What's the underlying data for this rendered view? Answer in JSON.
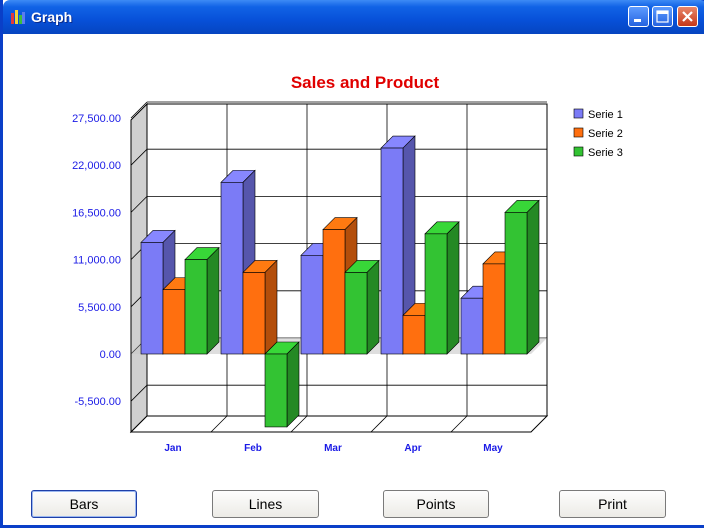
{
  "window": {
    "title": "Graph"
  },
  "buttons": {
    "bars": "Bars",
    "lines": "Lines",
    "points": "Points",
    "print": "Print"
  },
  "colors": {
    "serie1": "#7b7bf6",
    "serie2": "#ff6f0f",
    "serie3": "#33c333",
    "title": "#e00000",
    "axis_text": "#1a1ae6"
  },
  "chart_data": {
    "type": "bar",
    "title": "Sales and Product",
    "categories": [
      "Jan",
      "Feb",
      "Mar",
      "Apr",
      "May"
    ],
    "series": [
      {
        "name": "Serie 1",
        "values": [
          13000,
          20000,
          11500,
          24000,
          6500
        ]
      },
      {
        "name": "Serie 2",
        "values": [
          7500,
          9500,
          14500,
          4500,
          10500
        ]
      },
      {
        "name": "Serie 3",
        "values": [
          11000,
          -8500,
          9500,
          14000,
          16500
        ]
      }
    ],
    "ytick_labels": [
      "27,500.00",
      "22,000.00",
      "16,500.00",
      "11,000.00",
      "5,500.00",
      "0.00",
      "-5,500.00"
    ],
    "ylim": [
      -11000,
      27500
    ],
    "grid": true,
    "legend": "right",
    "three_d": true
  }
}
